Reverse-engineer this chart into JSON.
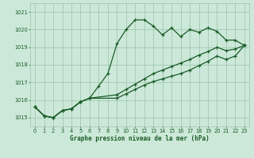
{
  "title": "Graphe pression niveau de la mer (hPa)",
  "bg_color": "#cce8d8",
  "grid_color": "#99c4aa",
  "line_color": "#1a5c28",
  "marker": "+",
  "markersize": 3.5,
  "markeredgewidth": 0.9,
  "linewidth": 0.9,
  "ylim": [
    1014.5,
    1021.5
  ],
  "xlim": [
    -0.5,
    23.5
  ],
  "yticks": [
    1015,
    1016,
    1017,
    1018,
    1019,
    1020,
    1021
  ],
  "xticks": [
    0,
    1,
    2,
    3,
    4,
    5,
    6,
    7,
    8,
    9,
    10,
    11,
    12,
    13,
    14,
    15,
    16,
    17,
    18,
    19,
    20,
    21,
    22,
    23
  ],
  "line1_x": [
    0,
    1,
    2,
    3,
    4,
    5,
    6,
    7,
    8,
    9,
    10,
    11,
    12,
    13,
    14,
    15,
    16,
    17,
    18,
    19,
    20,
    21,
    22,
    23
  ],
  "line1": [
    1015.6,
    1015.1,
    1015.0,
    1015.4,
    1015.5,
    1015.9,
    1016.1,
    1016.8,
    1017.5,
    1019.2,
    1020.0,
    1020.55,
    1020.55,
    1020.2,
    1019.7,
    1020.1,
    1019.6,
    1020.0,
    1019.85,
    1020.1,
    1019.9,
    1019.4,
    1019.4,
    1019.1
  ],
  "line2_x": [
    0,
    1,
    2,
    3,
    4,
    5,
    6,
    9,
    10,
    11,
    12,
    13,
    14,
    15,
    16,
    17,
    18,
    19,
    20,
    21,
    22,
    23
  ],
  "line2": [
    1015.6,
    1015.1,
    1015.0,
    1015.4,
    1015.5,
    1015.9,
    1016.1,
    1016.3,
    1016.6,
    1016.9,
    1017.2,
    1017.5,
    1017.7,
    1017.9,
    1018.1,
    1018.3,
    1018.55,
    1018.75,
    1019.0,
    1018.8,
    1018.9,
    1019.1
  ],
  "line3_x": [
    0,
    1,
    2,
    3,
    4,
    5,
    6,
    9,
    10,
    11,
    12,
    13,
    14,
    15,
    16,
    17,
    18,
    19,
    20,
    21,
    22,
    23
  ],
  "line3": [
    1015.6,
    1015.1,
    1015.0,
    1015.4,
    1015.5,
    1015.9,
    1016.1,
    1016.1,
    1016.35,
    1016.6,
    1016.85,
    1017.05,
    1017.2,
    1017.35,
    1017.5,
    1017.7,
    1017.95,
    1018.2,
    1018.5,
    1018.3,
    1018.5,
    1019.1
  ],
  "title_fontsize": 5.5,
  "tick_fontsize": 4.8
}
